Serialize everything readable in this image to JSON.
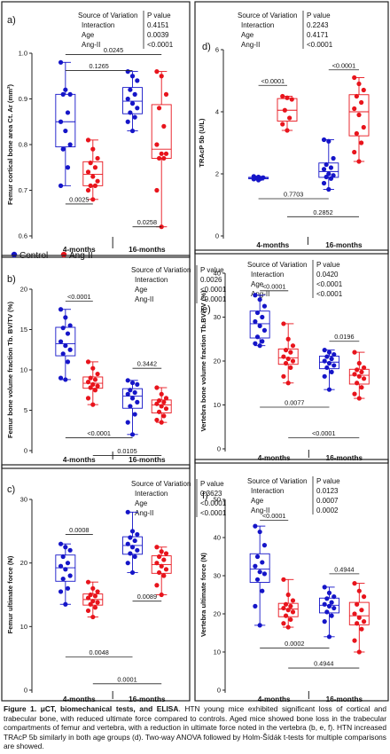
{
  "figure": {
    "caption_bold": "Figure 1. μCT, biomechanical tests, and ELISA",
    "caption_rest": ". HTN young mice exhibited significant loss of cortical and trabecular bone, with reduced ultimate force compared to controls. Aged mice showed bone loss in the trabecular compartments of femur and vertebra, with a reduction in ultimate force noted in the vertebra (b, e, f). HTN increased TRAcP 5b similarly in both age groups (d).  Two-way ANOVA followed by Holm-Šídák t-tests for multiple comparisons are showed.",
    "legend": {
      "control": "Control",
      "angii": "Ang-II"
    },
    "colors": {
      "control": "#1515c8",
      "angii": "#e8141c",
      "frame": "#222222"
    },
    "stats_header": [
      "Source of Variation",
      "P value"
    ],
    "stats_rows": [
      "Interaction",
      "Age",
      "Ang-II"
    ],
    "groups": [
      "4-months",
      "16-months"
    ]
  },
  "chart_data": [
    {
      "id": "a",
      "panel_label": "a)",
      "type": "box",
      "ylabel": "Femur cortical bone area Ct. Ar (mm²)",
      "ylim": [
        0.6,
        1.0
      ],
      "ticks": [
        0.6,
        0.7,
        0.8,
        0.9,
        1.0
      ],
      "stats": [
        "0.4151",
        "0.0039",
        "<0.0001"
      ],
      "groups": [
        {
          "name": "4-months",
          "control": [
            0.98,
            0.92,
            0.91,
            0.91,
            0.87,
            0.85,
            0.83,
            0.8,
            0.79,
            0.75,
            0.71
          ],
          "angii": [
            0.81,
            0.79,
            0.77,
            0.76,
            0.75,
            0.74,
            0.73,
            0.72,
            0.71,
            0.71,
            0.7,
            0.68
          ]
        },
        {
          "name": "16-months",
          "control": [
            0.96,
            0.95,
            0.94,
            0.92,
            0.91,
            0.9,
            0.89,
            0.88,
            0.87,
            0.86,
            0.85,
            0.83
          ],
          "angii": [
            0.96,
            0.95,
            0.91,
            0.88,
            0.84,
            0.8,
            0.78,
            0.78,
            0.77,
            0.77,
            0.7,
            0.62
          ]
        }
      ],
      "comparisons": [
        {
          "label": "0.0245",
          "y": 0.997
        },
        {
          "label": "0.1265",
          "y": 0.962
        },
        {
          "label": "0.0025",
          "y": 0.67
        },
        {
          "label": "0.0258",
          "y": 0.62
        }
      ]
    },
    {
      "id": "b",
      "panel_label": "b)",
      "type": "box",
      "ylabel": "Femur bone volume fraction Tb. BV/TV (%)",
      "ylim": [
        0,
        20
      ],
      "ticks": [
        0,
        5,
        10,
        15,
        20
      ],
      "stats": [
        "0.0026",
        "<0.0001",
        "<0.0001"
      ],
      "groups": [
        {
          "name": "4-months",
          "control": [
            17.5,
            16.5,
            15.5,
            15.2,
            14.5,
            13.5,
            13.0,
            12.5,
            12.0,
            11.0,
            9.0,
            8.8
          ],
          "angii": [
            11.0,
            10.2,
            9.5,
            9.0,
            8.8,
            8.5,
            8.2,
            8.0,
            7.8,
            7.5,
            6.5,
            5.7
          ]
        },
        {
          "name": "16-months",
          "control": [
            8.7,
            8.4,
            8.2,
            7.5,
            7.2,
            7.0,
            6.5,
            6.0,
            5.5,
            4.5,
            3.5,
            2.0
          ],
          "angii": [
            7.8,
            7.0,
            6.5,
            6.2,
            6.0,
            5.8,
            5.5,
            5.2,
            4.8,
            4.3,
            3.8,
            3.5
          ]
        }
      ],
      "comparisons": [
        {
          "label": "<0.0001",
          "y": 18.5
        },
        {
          "label": "0.3442",
          "y": 10.2
        },
        {
          "label": "<0.0001",
          "y": 1.6
        },
        {
          "label": "0.0105",
          "y": -0.6
        }
      ]
    },
    {
      "id": "c",
      "panel_label": "c)",
      "type": "box",
      "ylabel": "Femur ultimate force (N)",
      "ylim": [
        0,
        30
      ],
      "ticks": [
        0,
        10,
        20,
        30
      ],
      "stats": [
        "0.3623",
        "<0.0001",
        "<0.0001"
      ],
      "groups": [
        {
          "name": "4-months",
          "control": [
            23.0,
            22.5,
            22.0,
            21.0,
            20.0,
            19.5,
            19.0,
            18.0,
            17.5,
            16.0,
            15.5,
            13.5
          ],
          "angii": [
            17.0,
            16.0,
            15.5,
            15.0,
            14.8,
            14.5,
            14.0,
            13.8,
            13.5,
            13.0,
            12.5,
            11.5
          ]
        },
        {
          "name": "16-months",
          "control": [
            28.0,
            25.0,
            24.5,
            24.0,
            23.5,
            23.0,
            22.5,
            22.0,
            21.5,
            21.0,
            20.0,
            18.5
          ],
          "angii": [
            22.5,
            21.8,
            21.5,
            21.0,
            20.5,
            20.0,
            19.5,
            19.0,
            18.5,
            18.0,
            16.5,
            15.0
          ]
        }
      ],
      "comparisons": [
        {
          "label": "0.0008",
          "y": 24.5
        },
        {
          "label": "0.0089",
          "y": 14.0
        },
        {
          "label": "0.0048",
          "y": 5.2
        },
        {
          "label": "0.0001",
          "y": 1.0
        }
      ]
    },
    {
      "id": "d",
      "panel_label": "d)",
      "type": "box",
      "ylabel": "TRAcP 5b (U/L)",
      "ylim": [
        0,
        6
      ],
      "ticks": [
        0,
        2,
        4,
        6
      ],
      "stats": [
        "0.2243",
        "0.4171",
        "<0.0001"
      ],
      "groups": [
        {
          "name": "4-months",
          "control": [
            1.92,
            1.9,
            1.88,
            1.86,
            1.85,
            1.83,
            1.8
          ],
          "angii": [
            4.5,
            4.45,
            4.4,
            4.05,
            3.8,
            3.6,
            3.4
          ]
        },
        {
          "name": "16-months",
          "control": [
            3.1,
            3.05,
            2.5,
            2.3,
            2.2,
            2.15,
            2.0,
            1.95,
            1.9,
            1.85,
            1.7,
            1.5
          ],
          "angii": [
            5.1,
            4.9,
            4.7,
            4.5,
            4.3,
            4.1,
            3.9,
            3.5,
            3.3,
            3.0,
            2.7,
            2.4
          ]
        }
      ],
      "comparisons": [
        {
          "label": "<0.0001",
          "y": 4.85
        },
        {
          "label": "<0.0001",
          "y": 5.35
        },
        {
          "label": "0.7703",
          "y": 1.2
        },
        {
          "label": "0.2852",
          "y": 0.62
        }
      ]
    },
    {
      "id": "e",
      "panel_label": "e)",
      "type": "box",
      "ylabel": "Vertebra bone volume fraction Tb.BV/TV (%)",
      "ylim": [
        0,
        40
      ],
      "ticks": [
        0,
        10,
        20,
        30,
        40
      ],
      "stats": [
        "0.0420",
        "<0.0001",
        "<0.0001"
      ],
      "groups": [
        {
          "name": "4-months",
          "control": [
            35.0,
            34.0,
            32.5,
            31.0,
            30.0,
            29.0,
            28.0,
            27.0,
            25.5,
            24.5,
            24.0,
            23.5
          ],
          "angii": [
            28.5,
            25.0,
            23.5,
            22.5,
            22.0,
            21.0,
            20.5,
            20.0,
            19.5,
            18.5,
            16.5,
            15.0
          ]
        },
        {
          "name": "16-months",
          "control": [
            22.5,
            22.0,
            21.5,
            21.0,
            20.5,
            20.0,
            19.5,
            19.0,
            18.5,
            17.5,
            16.5,
            13.5
          ],
          "angii": [
            22.0,
            19.5,
            18.5,
            18.0,
            17.5,
            17.0,
            16.5,
            16.0,
            15.0,
            14.0,
            12.5,
            11.5
          ]
        }
      ],
      "comparisons": [
        {
          "label": "<0.0001",
          "y": 36.0
        },
        {
          "label": "0.0196",
          "y": 24.5
        },
        {
          "label": "0.0077",
          "y": 9.5
        },
        {
          "label": "<0.0001",
          "y": 2.5
        }
      ]
    },
    {
      "id": "f",
      "panel_label": "f)",
      "type": "box",
      "ylabel": "Vertebra ultimate force (N)",
      "ylim": [
        0,
        50
      ],
      "ticks": [
        0,
        10,
        20,
        30,
        40,
        50
      ],
      "stats": [
        "0.0123",
        "0.0007",
        "0.0002"
      ],
      "groups": [
        {
          "name": "4-months",
          "control": [
            43.0,
            41.5,
            38.0,
            35.0,
            33.5,
            32.5,
            31.0,
            30.5,
            29.0,
            26.0,
            22.0,
            17.0
          ],
          "angii": [
            29.0,
            25.0,
            23.5,
            22.5,
            22.0,
            21.5,
            21.0,
            20.5,
            19.5,
            18.5,
            17.5,
            16.5
          ]
        },
        {
          "name": "16-months",
          "control": [
            27.0,
            25.5,
            24.5,
            24.0,
            23.0,
            22.5,
            22.0,
            21.5,
            20.5,
            19.5,
            18.0,
            14.0
          ],
          "angii": [
            28.0,
            26.0,
            24.5,
            22.5,
            21.0,
            20.0,
            19.0,
            18.0,
            17.5,
            16.0,
            13.0,
            10.0
          ]
        }
      ],
      "comparisons": [
        {
          "label": "<0.0001",
          "y": 44.5
        },
        {
          "label": "0.4944",
          "y": 30.5
        },
        {
          "label": "0.0002",
          "y": 11.0
        },
        {
          "label": "0.4944",
          "y": 5.8
        }
      ]
    }
  ]
}
